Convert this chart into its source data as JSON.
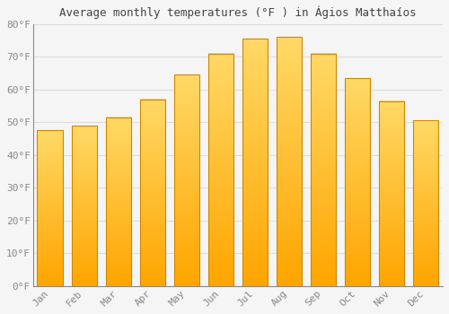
{
  "title": "Average monthly temperatures (°F ) in Ágios Matthaíos",
  "months": [
    "Jan",
    "Feb",
    "Mar",
    "Apr",
    "May",
    "Jun",
    "Jul",
    "Aug",
    "Sep",
    "Oct",
    "Nov",
    "Dec"
  ],
  "values": [
    47.5,
    49.0,
    51.5,
    57.0,
    64.5,
    71.0,
    75.5,
    76.0,
    71.0,
    63.5,
    56.5,
    50.5
  ],
  "bar_color_top": "#FFD966",
  "bar_color_bottom": "#FFA500",
  "bar_edge_color": "#CC8800",
  "background_color": "#F5F5F5",
  "plot_bg_color": "#F5F5F5",
  "grid_color": "#DDDDDD",
  "tick_label_color": "#888888",
  "title_color": "#444444",
  "ylim": [
    0,
    80
  ],
  "yticks": [
    0,
    10,
    20,
    30,
    40,
    50,
    60,
    70,
    80
  ],
  "ytick_labels": [
    "0°F",
    "10°F",
    "20°F",
    "30°F",
    "40°F",
    "50°F",
    "60°F",
    "70°F",
    "80°F"
  ]
}
